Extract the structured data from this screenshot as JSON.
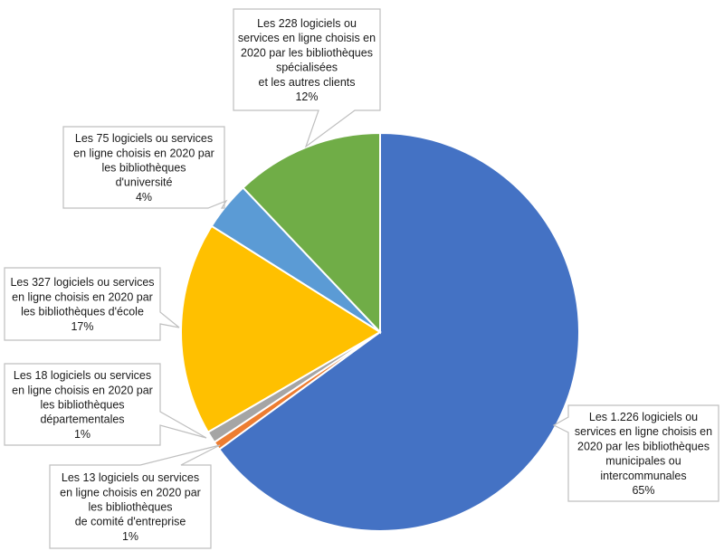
{
  "chart_data": {
    "type": "pie",
    "title": "",
    "start_angle_deg": 0,
    "direction": "clockwise",
    "categories": [
      "bibliothèques municipales ou intercommunales",
      "bibliothèques de comité d'entreprise",
      "bibliothèques départementales",
      "bibliothèques d'école",
      "bibliothèques d'université",
      "bibliothèques spécialisées et les autres clients"
    ],
    "values": [
      1226,
      13,
      18,
      327,
      75,
      228
    ],
    "percent_labels": [
      "65%",
      "1%",
      "1%",
      "17%",
      "4%",
      "12%"
    ],
    "colors": [
      "#4472C4",
      "#ED7D31",
      "#A5A5A5",
      "#FFC000",
      "#5B9BD5",
      "#70AD47"
    ],
    "labels": [
      {
        "lines": [
          "Les 1.226 logiciels ou",
          "services en ligne choisis en",
          "2020 par les bibliothèques",
          "municipales ou",
          "intercommunales",
          "65%"
        ]
      },
      {
        "lines": [
          "Les 13 logiciels ou services",
          "en ligne choisis en 2020 par",
          "les bibliothèques",
          "de comité d'entreprise",
          "1%"
        ]
      },
      {
        "lines": [
          "Les 18 logiciels ou services",
          "en ligne choisis en 2020 par",
          "les bibliothèques",
          "départementales",
          "1%"
        ]
      },
      {
        "lines": [
          "Les 327 logiciels ou services",
          "en ligne choisis en 2020 par",
          "les bibliothèques d'école",
          "17%"
        ]
      },
      {
        "lines": [
          "Les 75 logiciels ou services",
          "en ligne choisis en 2020 par",
          "les bibliothèques",
          "d'université",
          "4%"
        ]
      },
      {
        "lines": [
          "Les 228  logiciels ou",
          "services en ligne choisis en",
          "2020 par les bibliothèques",
          "spécialisées",
          "et les autres clients",
          "12%"
        ]
      }
    ],
    "legend": null
  }
}
